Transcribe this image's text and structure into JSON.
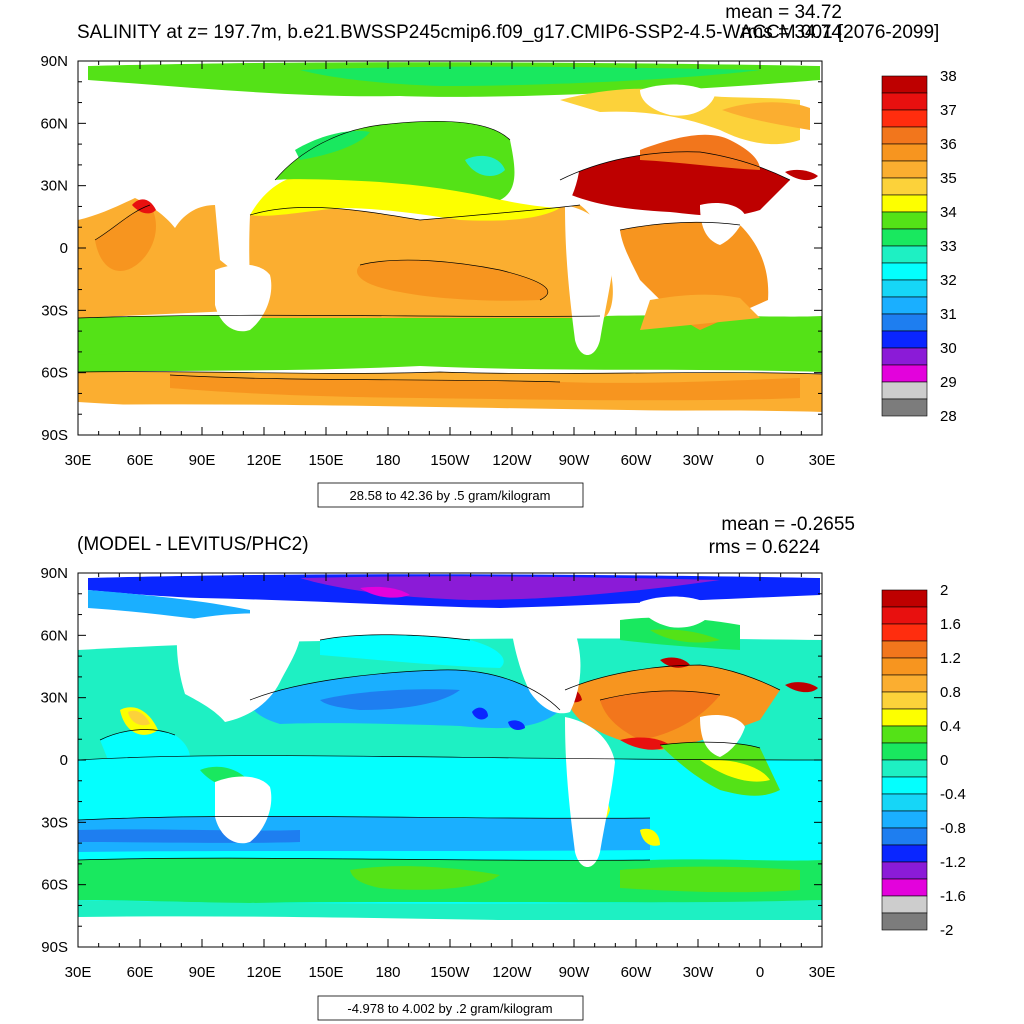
{
  "chart_data": [
    {
      "type": "heatmap",
      "title": "SALINITY at z= 197.7m, b.e21.BWSSP245cmip6.f09_g17.CMIP6-SSP2-4.5-WACCM.001 [2076-2099]",
      "stats": [
        "mean = 34.72",
        "rms = 34.74"
      ],
      "y_ticks": [
        "90N",
        "60N",
        "30N",
        "0",
        "30S",
        "60S",
        "90S"
      ],
      "x_ticks": [
        "30E",
        "60E",
        "90E",
        "120E",
        "150E",
        "180",
        "150W",
        "120W",
        "90W",
        "60W",
        "30W",
        "0",
        "30E"
      ],
      "ylim": [
        -90,
        90
      ],
      "xlim": [
        30,
        390
      ],
      "colorbar": {
        "labels": [
          "38",
          "37",
          "36",
          "35",
          "34",
          "33",
          "32",
          "31",
          "30",
          "29",
          "28"
        ],
        "colors": [
          "#be0000",
          "#e8100f",
          "#ff2d0e",
          "#f2761c",
          "#f7951f",
          "#fbae30",
          "#fcd23a",
          "#fdff00",
          "#54e217",
          "#19e85f",
          "#1ef0c3",
          "#04fffe",
          "#16d6f7",
          "#1aafff",
          "#1e7ef0",
          "#0a26ff",
          "#8b1bd7",
          "#e302dc",
          "#cdcdcd",
          "#7c7c7c"
        ]
      },
      "contour_info": "28.58 to 42.36 by .5 gram/kilogram",
      "grid": false
    },
    {
      "type": "heatmap",
      "title": "(MODEL - LEVITUS/PHC2)",
      "stats": [
        "mean = -0.2655",
        "rms = 0.6224"
      ],
      "y_ticks": [
        "90N",
        "60N",
        "30N",
        "0",
        "30S",
        "60S",
        "90S"
      ],
      "x_ticks": [
        "30E",
        "60E",
        "90E",
        "120E",
        "150E",
        "180",
        "150W",
        "120W",
        "90W",
        "60W",
        "30W",
        "0",
        "30E"
      ],
      "ylim": [
        -90,
        90
      ],
      "xlim": [
        30,
        390
      ],
      "colorbar": {
        "labels": [
          "2",
          "1.6",
          "1.2",
          "0.8",
          "0.4",
          "0",
          "-0.4",
          "-0.8",
          "-1.2",
          "-1.6",
          "-2"
        ],
        "colors": [
          "#be0000",
          "#e8100f",
          "#ff2d0e",
          "#f2761c",
          "#f7951f",
          "#fbae30",
          "#fcd23a",
          "#fdff00",
          "#54e217",
          "#19e85f",
          "#1ef0c3",
          "#04fffe",
          "#16d6f7",
          "#1aafff",
          "#1e7ef0",
          "#0a26ff",
          "#8b1bd7",
          "#e302dc",
          "#cdcdcd",
          "#7c7c7c"
        ]
      },
      "contour_info": "-4.978 to 4.002 by .2 gram/kilogram",
      "grid": false
    }
  ]
}
